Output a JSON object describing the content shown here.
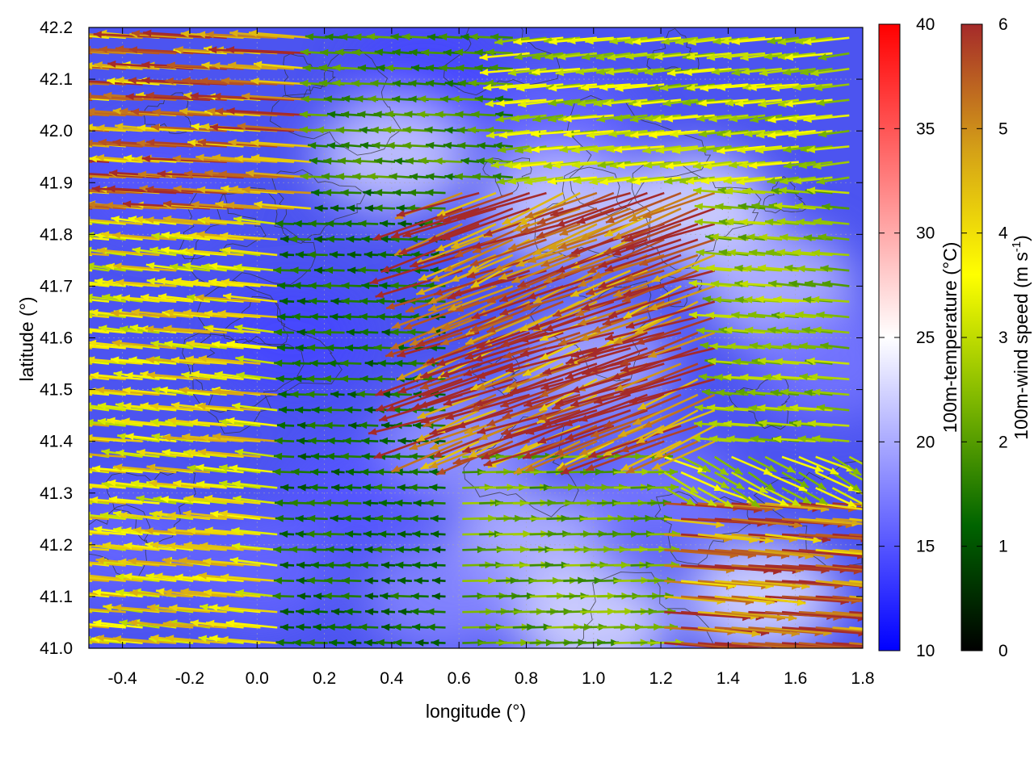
{
  "chart_data": {
    "type": "heatmap",
    "title": "",
    "xlabel": "longitude (°)",
    "ylabel": "latitude (°)",
    "xlim": [
      -0.5,
      1.8
    ],
    "ylim": [
      41.0,
      42.2
    ],
    "x_ticks": [
      "-0.4",
      "-0.2",
      "0.0",
      "0.2",
      "0.4",
      "0.6",
      "0.8",
      "1.0",
      "1.2",
      "1.4",
      "1.6",
      "1.8"
    ],
    "x_tick_values": [
      -0.4,
      -0.2,
      0.0,
      0.2,
      0.4,
      0.6,
      0.8,
      1.0,
      1.2,
      1.4,
      1.6,
      1.8
    ],
    "y_ticks": [
      "41.0",
      "41.1",
      "41.2",
      "41.3",
      "41.4",
      "41.5",
      "41.6",
      "41.7",
      "41.8",
      "41.9",
      "42.0",
      "42.1",
      "42.2"
    ],
    "y_tick_values": [
      41.0,
      41.1,
      41.2,
      41.3,
      41.4,
      41.5,
      41.6,
      41.7,
      41.8,
      41.9,
      42.0,
      42.1,
      42.2
    ],
    "grid": true,
    "temperature_colorbar": {
      "label": "100m-temperature (°C)",
      "range": [
        10,
        40
      ],
      "ticks": [
        "10",
        "15",
        "20",
        "25",
        "30",
        "35",
        "40"
      ],
      "tick_values": [
        10,
        15,
        20,
        25,
        30,
        35,
        40
      ],
      "colors": [
        "#0000ff",
        "#ffffff",
        "#ff0000"
      ]
    },
    "wind_colorbar": {
      "label": "100m-wind speed (m s",
      "label_sup": "-1",
      "label_end": ")",
      "range": [
        0,
        6
      ],
      "ticks": [
        "0",
        "1",
        "2",
        "3",
        "4",
        "5",
        "6"
      ],
      "tick_values": [
        0,
        1,
        2,
        3,
        4,
        5,
        6
      ],
      "colors": [
        "#000000",
        "#006400",
        "#7fb800",
        "#ffff00",
        "#d4a017",
        "#a52a2a"
      ]
    },
    "temperature_field": [
      {
        "lon": 0.1,
        "lat": 41.6,
        "temp": 14
      },
      {
        "lon": -0.3,
        "lat": 41.9,
        "temp": 15
      },
      {
        "lon": 0.3,
        "lat": 41.3,
        "temp": 15
      },
      {
        "lon": 0.5,
        "lat": 42.1,
        "temp": 14
      },
      {
        "lon": 0.4,
        "lat": 41.95,
        "temp": 22
      },
      {
        "lon": 0.9,
        "lat": 42.0,
        "temp": 16
      },
      {
        "lon": 0.9,
        "lat": 41.85,
        "temp": 22
      },
      {
        "lon": 1.3,
        "lat": 41.85,
        "temp": 23
      },
      {
        "lon": 1.0,
        "lat": 41.55,
        "temp": 20
      },
      {
        "lon": 1.55,
        "lat": 41.7,
        "temp": 21
      },
      {
        "lon": 1.7,
        "lat": 41.55,
        "temp": 17
      },
      {
        "lon": 1.2,
        "lat": 41.3,
        "temp": 17
      },
      {
        "lon": 0.8,
        "lat": 41.2,
        "temp": 21
      },
      {
        "lon": 1.5,
        "lat": 41.1,
        "temp": 23
      },
      {
        "lon": 1.0,
        "lat": 41.05,
        "temp": 23
      },
      {
        "lon": 0.6,
        "lat": 41.4,
        "temp": 19
      },
      {
        "lon": 0.0,
        "lat": 41.15,
        "temp": 16
      },
      {
        "lon": -0.4,
        "lat": 41.2,
        "temp": 16
      },
      {
        "lon": 0.55,
        "lat": 41.1,
        "temp": 18
      }
    ],
    "wind_regions": [
      {
        "lon": [
          -0.5,
          0.2
        ],
        "lat": [
          41.85,
          42.2
        ],
        "u": -4.8,
        "v": 0.3,
        "speed": 5.0
      },
      {
        "lon": [
          -0.5,
          0.1
        ],
        "lat": [
          41.0,
          41.85
        ],
        "u": -3.6,
        "v": 0.35,
        "speed": 3.8
      },
      {
        "lon": [
          0.1,
          0.6
        ],
        "lat": [
          41.0,
          41.9
        ],
        "u": -1.2,
        "v": 0.05,
        "speed": 1.3
      },
      {
        "lon": [
          0.2,
          0.8
        ],
        "lat": [
          41.9,
          42.2
        ],
        "u": -1.6,
        "v": 0.1,
        "speed": 1.8
      },
      {
        "lon": [
          0.8,
          1.8
        ],
        "lat": [
          41.9,
          42.2
        ],
        "u": -2.8,
        "v": -0.3,
        "speed": 3.0
      },
      {
        "lon": [
          0.6,
          1.4
        ],
        "lat": [
          41.4,
          41.9
        ],
        "u": -5.2,
        "v": -1.9,
        "speed": 5.6
      },
      {
        "lon": [
          1.4,
          1.8
        ],
        "lat": [
          41.4,
          41.9
        ],
        "u": -2.4,
        "v": 0.2,
        "speed": 2.5
      },
      {
        "lon": [
          0.6,
          1.2
        ],
        "lat": [
          41.0,
          41.4
        ],
        "u": 2.0,
        "v": 0.05,
        "speed": 2.2
      },
      {
        "lon": [
          1.2,
          1.8
        ],
        "lat": [
          41.0,
          41.3
        ],
        "u": 5.0,
        "v": -0.4,
        "speed": 5.3
      },
      {
        "lon": [
          1.2,
          1.8
        ],
        "lat": [
          41.3,
          41.4
        ],
        "u": 2.4,
        "v": -1.2,
        "speed": 3.0
      }
    ]
  }
}
